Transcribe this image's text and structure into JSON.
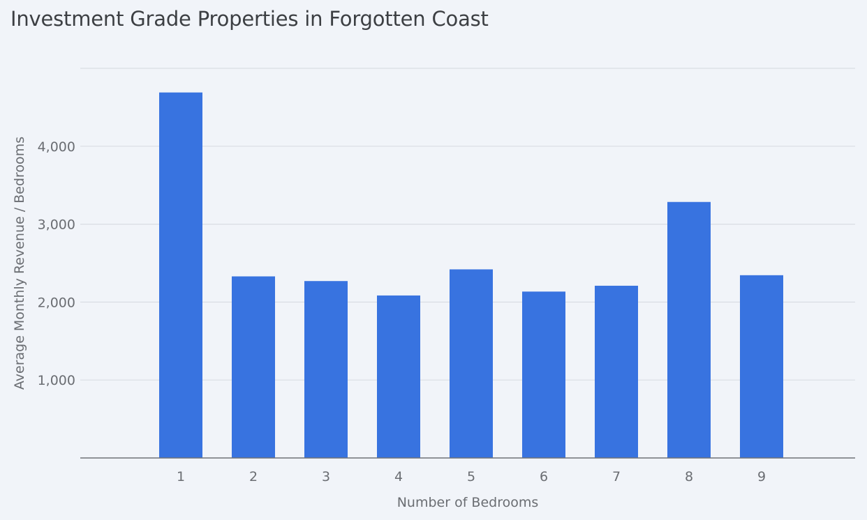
{
  "chart_data": {
    "type": "bar",
    "title": "Investment Grade Properties in Forgotten Coast",
    "xlabel": "Number of Bedrooms",
    "ylabel": "Average Monthly Revenue / Bedrooms",
    "categories": [
      "1",
      "2",
      "3",
      "4",
      "5",
      "6",
      "7",
      "8",
      "9"
    ],
    "values": [
      4690,
      2330,
      2270,
      2085,
      2420,
      2135,
      2210,
      3285,
      2345
    ],
    "ylim": [
      0,
      5000
    ],
    "yticks": [
      {
        "value": 1000,
        "label": "1,000"
      },
      {
        "value": 2000,
        "label": "2,000"
      },
      {
        "value": 3000,
        "label": "3,000"
      },
      {
        "value": 4000,
        "label": "4,000"
      }
    ],
    "grid": true,
    "bar_color": "#3873e0"
  }
}
